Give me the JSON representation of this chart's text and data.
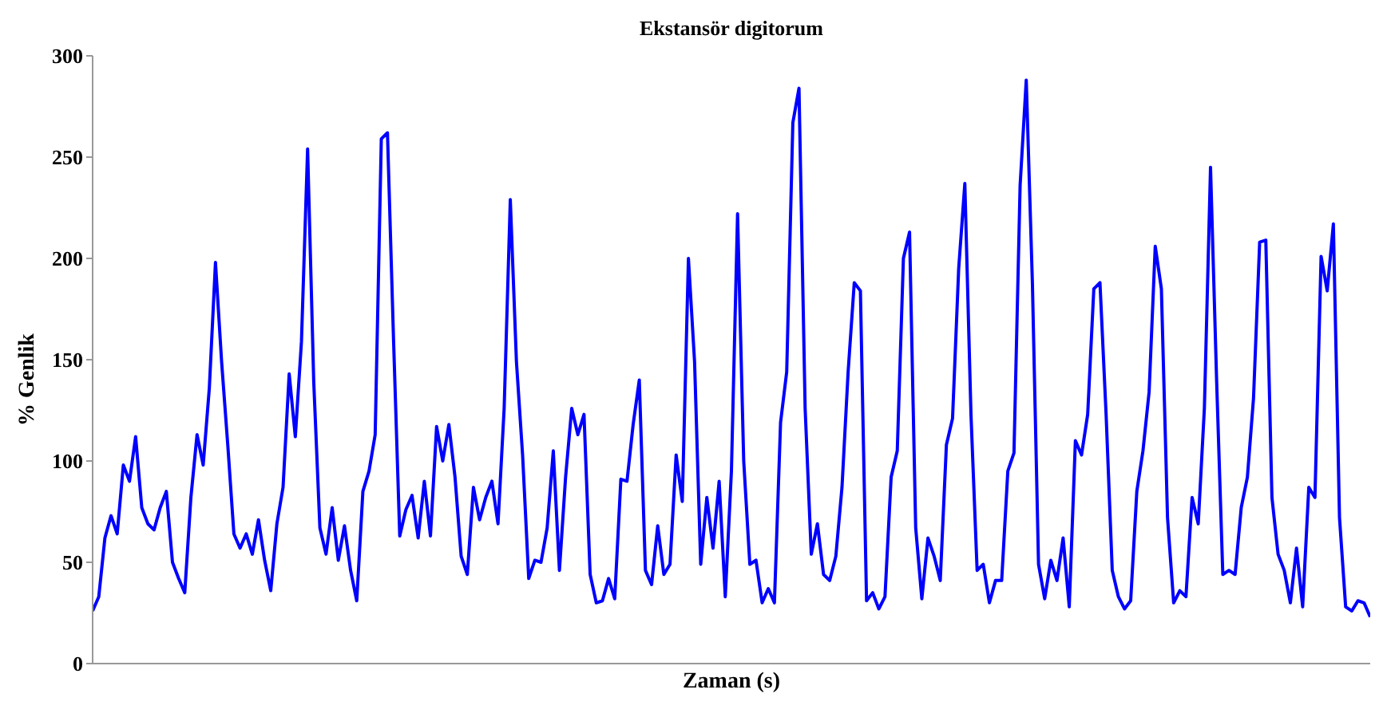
{
  "chart_data": {
    "type": "line",
    "title": "Ekstansör digitorum",
    "xlabel": "Zaman (s)",
    "ylabel": "% Genlik",
    "ylim": [
      0,
      300
    ],
    "yticks": [
      0,
      50,
      100,
      150,
      200,
      250,
      300
    ],
    "marker": "none",
    "line_style": "solid",
    "tick_labels": "y",
    "categories": [
      null,
      null,
      null,
      null,
      null,
      null,
      null,
      null,
      null,
      null,
      null,
      null,
      null,
      null,
      null,
      null,
      null,
      null,
      null,
      null,
      null,
      null,
      null,
      null,
      null,
      null,
      null,
      null,
      null,
      null,
      null,
      null,
      null,
      null,
      null,
      null,
      null,
      null,
      null,
      null,
      null,
      null,
      null,
      null,
      null,
      null,
      null,
      null,
      null,
      null,
      null,
      null,
      null,
      null,
      null,
      null,
      null,
      null,
      null,
      null,
      null,
      null,
      null,
      null,
      null,
      null,
      null,
      null,
      null,
      null,
      null,
      null,
      null,
      null,
      null,
      null,
      null,
      null,
      null,
      null,
      null,
      null,
      null,
      null,
      null,
      null,
      null,
      null,
      null,
      null,
      null,
      null,
      null,
      null,
      null,
      null,
      null,
      null,
      null,
      null,
      null,
      null,
      null,
      null,
      null,
      null,
      null,
      null,
      null,
      null,
      null,
      null,
      null,
      null,
      null,
      null,
      null,
      null,
      null,
      null,
      null,
      null,
      null,
      null,
      null,
      null,
      null,
      null,
      null,
      null,
      null,
      null,
      null,
      null,
      null,
      null,
      null,
      null,
      null,
      null,
      null,
      null,
      null,
      null,
      null,
      null,
      null,
      null,
      null,
      null,
      null,
      null,
      null,
      null,
      null,
      null,
      null,
      null,
      null,
      null,
      null,
      null,
      null,
      null,
      null,
      null,
      null,
      null,
      null,
      null,
      null,
      null,
      null,
      null,
      null,
      null,
      null,
      null,
      null,
      null,
      null,
      null,
      null,
      null,
      null,
      null,
      null,
      null,
      null,
      null,
      null,
      null,
      null,
      null,
      null,
      null,
      null,
      null,
      null,
      null,
      null,
      null,
      null,
      null,
      null,
      null,
      null,
      null,
      null
    ],
    "series": [
      {
        "color": "#0000ff",
        "values": [
          26,
          33,
          62,
          73,
          64,
          98,
          90,
          112,
          77,
          69,
          66,
          77,
          85,
          50,
          42,
          35,
          82,
          113,
          98,
          136,
          198,
          149,
          108,
          64,
          57,
          64,
          54,
          71,
          51,
          36,
          69,
          87,
          143,
          112,
          159,
          254,
          139,
          67,
          54,
          77,
          51,
          68,
          46,
          31,
          85,
          95,
          113,
          259,
          262,
          159,
          63,
          76,
          83,
          62,
          90,
          63,
          117,
          100,
          118,
          92,
          53,
          44,
          87,
          71,
          82,
          90,
          69,
          126,
          229,
          149,
          103,
          42,
          51,
          50,
          67,
          105,
          46,
          92,
          126,
          113,
          123,
          44,
          30,
          31,
          42,
          32,
          91,
          90,
          118,
          140,
          46,
          39,
          68,
          44,
          49,
          103,
          80,
          200,
          149,
          49,
          82,
          57,
          90,
          33,
          95,
          222,
          100,
          49,
          51,
          30,
          37,
          30,
          119,
          144,
          267,
          284,
          126,
          54,
          69,
          44,
          41,
          53,
          87,
          144,
          188,
          184,
          31,
          35,
          27,
          33,
          92,
          105,
          200,
          213,
          67,
          32,
          62,
          53,
          41,
          108,
          121,
          195,
          237,
          123,
          46,
          49,
          30,
          41,
          41,
          95,
          104,
          236,
          288,
          188,
          49,
          32,
          51,
          41,
          62,
          28,
          110,
          103,
          123,
          185,
          188,
          123,
          46,
          33,
          27,
          31,
          85,
          105,
          134,
          206,
          185,
          72,
          30,
          36,
          33,
          82,
          69,
          126,
          245,
          139,
          44,
          46,
          44,
          77,
          92,
          131,
          208,
          209,
          82,
          54,
          46,
          30,
          57,
          28,
          87,
          82,
          201,
          184,
          217,
          72,
          28,
          26,
          31,
          30,
          23
        ]
      }
    ]
  }
}
